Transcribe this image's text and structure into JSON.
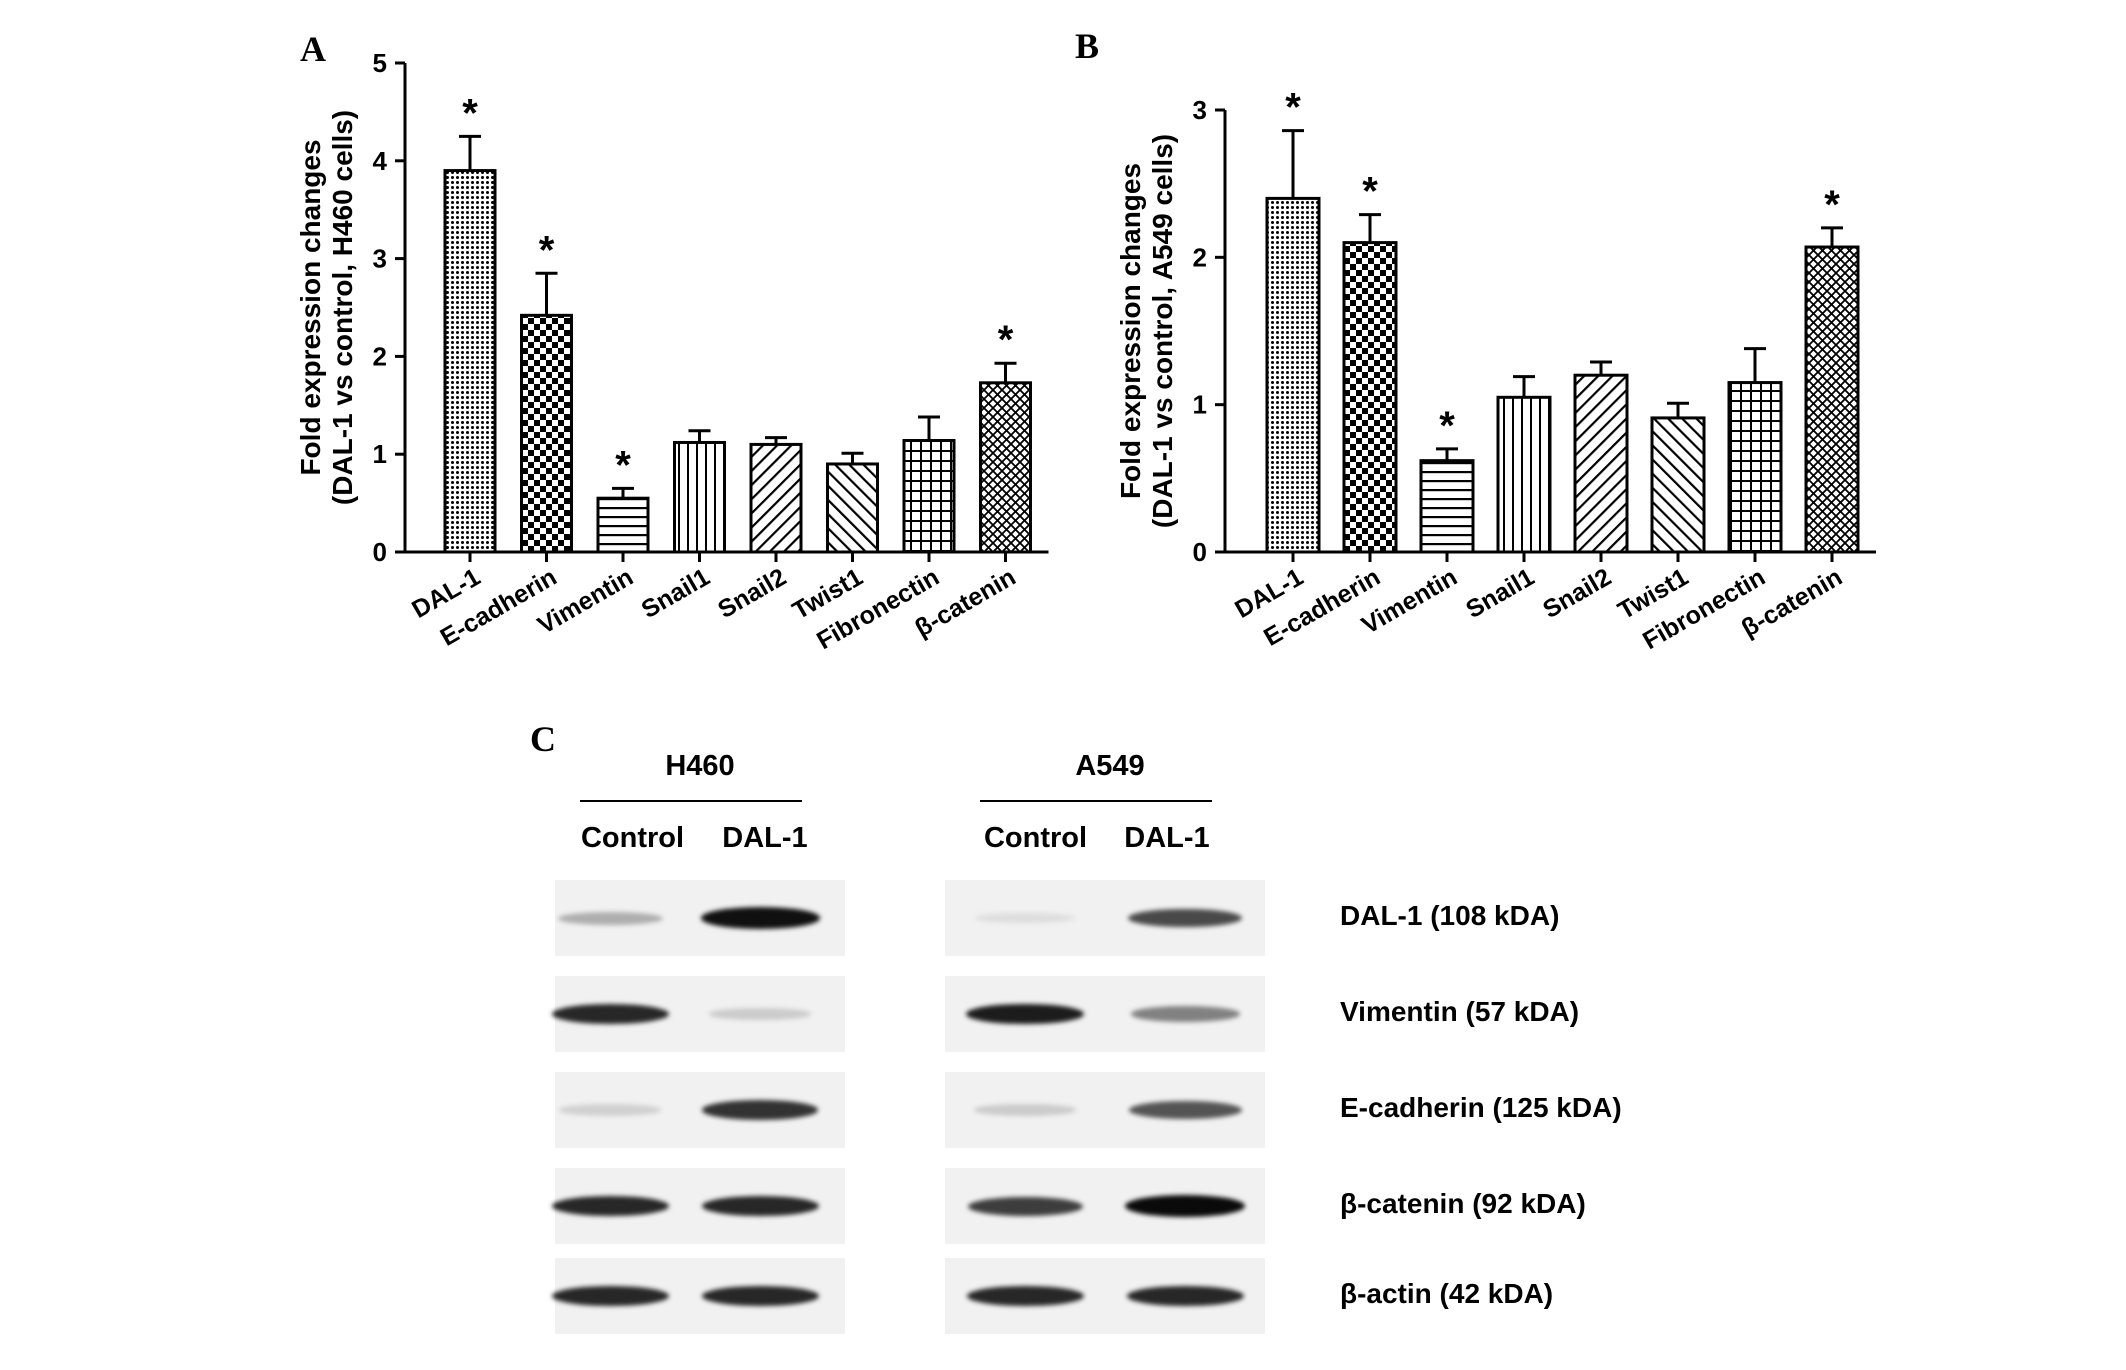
{
  "panels": {
    "a": "A",
    "b": "B",
    "c": "C"
  },
  "chart_data": [
    {
      "type": "bar",
      "ylabel": "Fold expression changes\n(DAL-1 vs control, H460 cells)",
      "ylim": [
        0,
        5
      ],
      "yticks": [
        "0",
        "1",
        "2",
        "3",
        "4",
        "5"
      ],
      "categories": [
        "DAL-1",
        "E-cadherin",
        "Vimentin",
        "Snail1",
        "Snail2",
        "Twist1",
        "Fibronectin",
        "β-catenin"
      ],
      "values": [
        3.9,
        2.42,
        0.55,
        1.12,
        1.1,
        0.9,
        1.14,
        1.73
      ],
      "errors": [
        0.35,
        0.43,
        0.1,
        0.12,
        0.07,
        0.11,
        0.24,
        0.2
      ],
      "significant": [
        true,
        true,
        true,
        false,
        false,
        false,
        false,
        true
      ],
      "sig_marker": "*",
      "patterns": [
        "dots",
        "checker",
        "hlines",
        "vlines",
        "diag",
        "antidiag",
        "grid",
        "crosshatch"
      ]
    },
    {
      "type": "bar",
      "ylabel": "Fold expression changes\n(DAL-1 vs control, A549 cells)",
      "ylim": [
        0,
        3
      ],
      "yticks": [
        "0",
        "1",
        "2",
        "3"
      ],
      "categories": [
        "DAL-1",
        "E-cadherin",
        "Vimentin",
        "Snail1",
        "Snail2",
        "Twist1",
        "Fibronectin",
        "β-catenin"
      ],
      "values": [
        2.4,
        2.1,
        0.62,
        1.05,
        1.2,
        0.91,
        1.15,
        2.07
      ],
      "errors": [
        0.46,
        0.19,
        0.08,
        0.14,
        0.09,
        0.1,
        0.23,
        0.13
      ],
      "significant": [
        true,
        true,
        true,
        false,
        false,
        false,
        false,
        true
      ],
      "sig_marker": "*",
      "patterns": [
        "dots",
        "checker",
        "hlines",
        "vlines",
        "diag",
        "antidiag",
        "grid",
        "crosshatch"
      ]
    }
  ],
  "blot": {
    "cells": [
      "H460",
      "A549"
    ],
    "lanes": [
      "Control",
      "DAL-1"
    ],
    "proteins": [
      {
        "name": "DAL-1",
        "kda": "(108 kDA)",
        "h460": [
          0.25,
          0.95
        ],
        "a549": [
          0.04,
          0.7
        ]
      },
      {
        "name": "Vimentin",
        "kda": "(57 kDA)",
        "h460": [
          0.85,
          0.12
        ],
        "a549": [
          0.9,
          0.45
        ]
      },
      {
        "name": "E-cadherin",
        "kda": "(125 kDA)",
        "h460": [
          0.1,
          0.8
        ],
        "a549": [
          0.12,
          0.65
        ]
      },
      {
        "name": "β-catenin",
        "kda": "(92 kDA)",
        "h460": [
          0.85,
          0.85
        ],
        "a549": [
          0.75,
          0.98
        ]
      },
      {
        "name": "β-actin",
        "kda": "(42 kDA)",
        "h460": [
          0.85,
          0.85
        ],
        "a549": [
          0.85,
          0.85
        ]
      }
    ]
  }
}
